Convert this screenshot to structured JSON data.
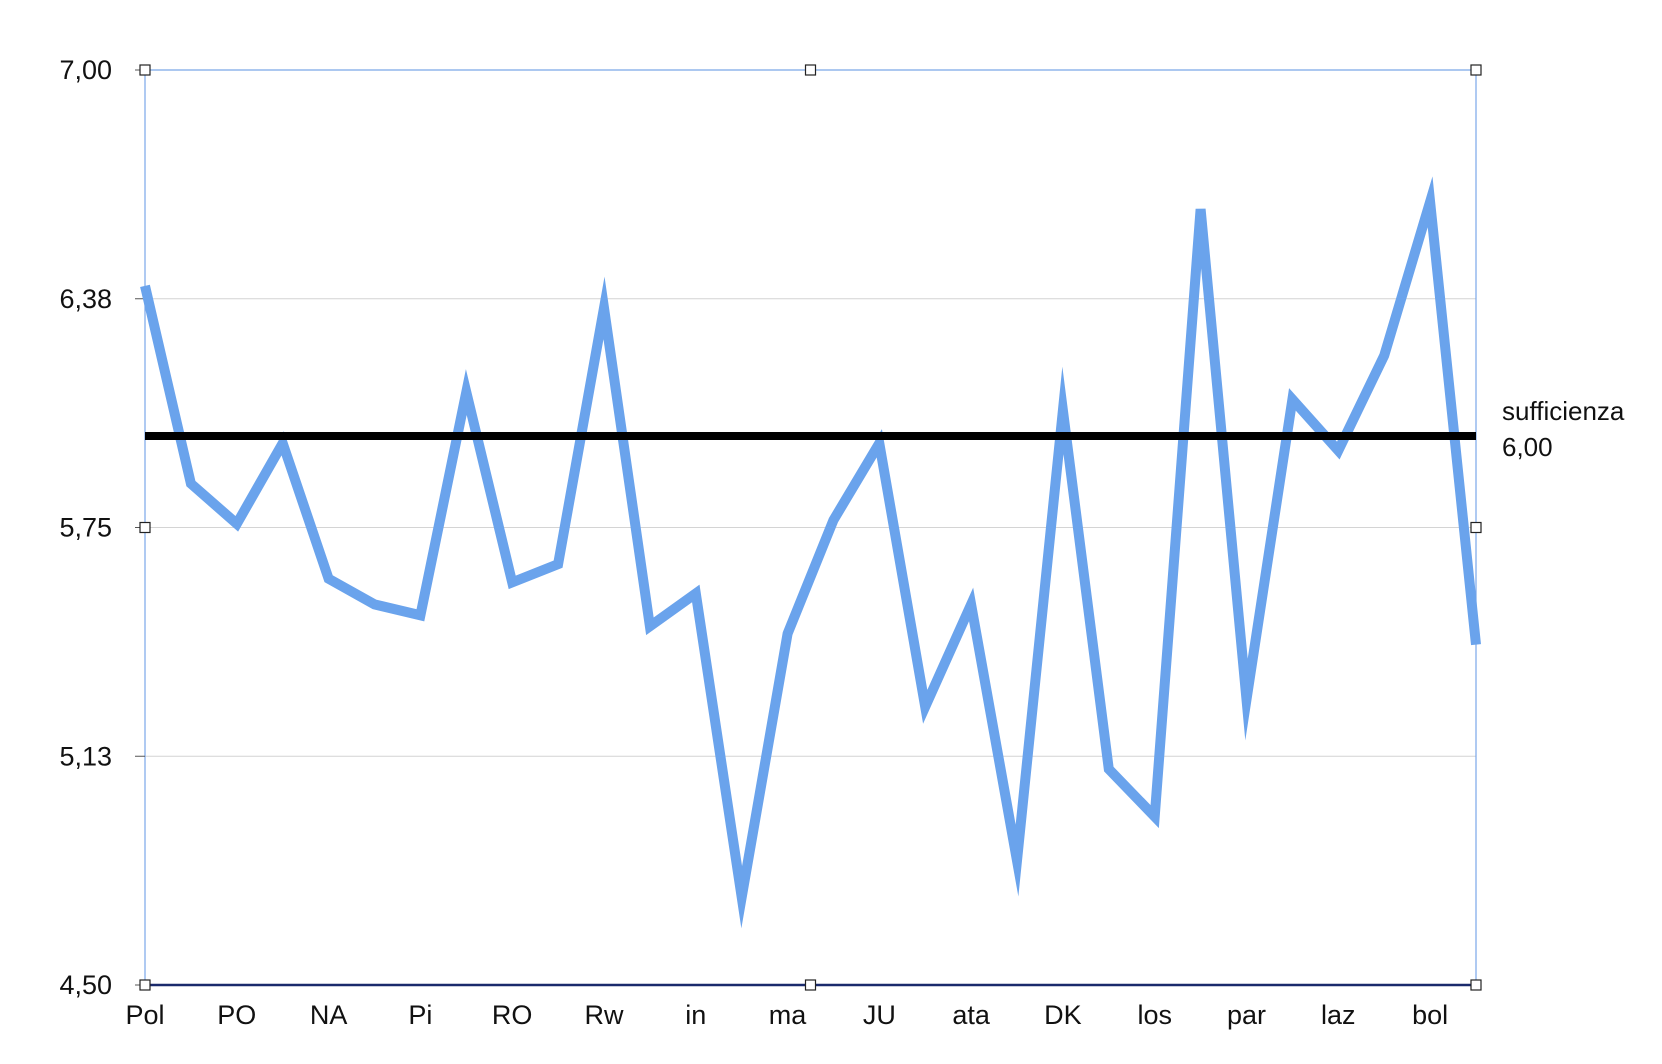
{
  "chart_data": {
    "type": "line",
    "title": "",
    "xlabel": "",
    "ylabel": "",
    "ylim": [
      4.5,
      7.0
    ],
    "y_ticks": [
      "4,50",
      "5,13",
      "5,75",
      "6,38",
      "7,00"
    ],
    "x_tick_labels": [
      "Pol",
      "PO",
      "NA",
      "Pi",
      "RO",
      "Rw",
      "in",
      "ma",
      "JU",
      "ata",
      "DK",
      "los",
      "par",
      "laz",
      "bol"
    ],
    "grid": "horizontal",
    "series": [
      {
        "values": [
          6.41,
          5.87,
          5.76,
          5.98,
          5.61,
          5.54,
          5.51,
          6.12,
          5.6,
          5.65,
          6.35,
          5.48,
          5.57,
          4.74,
          5.46,
          5.77,
          5.98,
          5.26,
          5.54,
          4.84,
          6.07,
          5.09,
          4.96,
          6.62,
          5.28,
          6.1,
          5.96,
          6.22,
          6.64,
          5.43
        ],
        "color": "#6aa3ec"
      }
    ],
    "reference_line": {
      "value": 6.0,
      "label": "sufficienza",
      "value_label": "6,00",
      "color": "#000000"
    }
  }
}
